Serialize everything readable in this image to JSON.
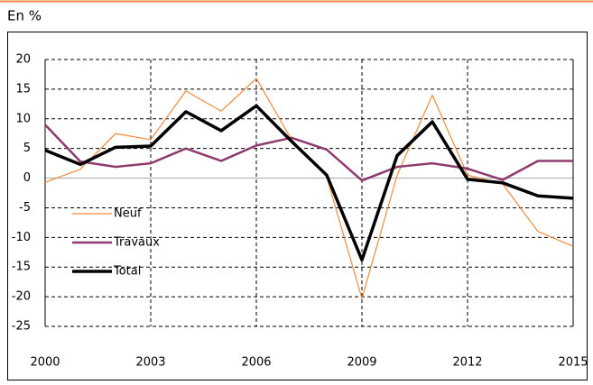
{
  "chart_data": {
    "type": "line",
    "unit_label": "En %",
    "x": [
      2000,
      2001,
      2002,
      2003,
      2004,
      2005,
      2006,
      2007,
      2008,
      2009,
      2010,
      2011,
      2012,
      2013,
      2014,
      2015
    ],
    "xlim": [
      2000,
      2015
    ],
    "xticks": [
      2000,
      2003,
      2006,
      2009,
      2012,
      2015
    ],
    "ylim": [
      -25,
      20
    ],
    "yticks": [
      -25,
      -20,
      -15,
      -10,
      -5,
      0,
      5,
      10,
      15,
      20
    ],
    "grid": true,
    "legend": "left",
    "series": [
      {
        "name": "Neuf",
        "color": "#f08a3c",
        "width": 1.2,
        "values": [
          -0.7,
          1.5,
          7.5,
          6.5,
          14.7,
          11.3,
          16.8,
          6.5,
          0.2,
          -20.3,
          0.5,
          14,
          0.5,
          -1,
          -9,
          -11.5
        ]
      },
      {
        "name": "Travaux",
        "color": "#8e3a6e",
        "width": 2.5,
        "values": [
          9,
          2.8,
          1.9,
          2.5,
          5,
          2.9,
          5.5,
          6.8,
          4.8,
          -0.4,
          1.9,
          2.5,
          1.6,
          -0.3,
          2.9,
          2.9
        ]
      },
      {
        "name": "Total",
        "color": "#000000",
        "width": 3.5,
        "values": [
          4.7,
          2.3,
          5.2,
          5.4,
          11.2,
          8,
          12.2,
          6.2,
          0.5,
          -13.8,
          3.8,
          9.5,
          -0.2,
          -0.8,
          -3,
          -3.4
        ]
      }
    ]
  }
}
